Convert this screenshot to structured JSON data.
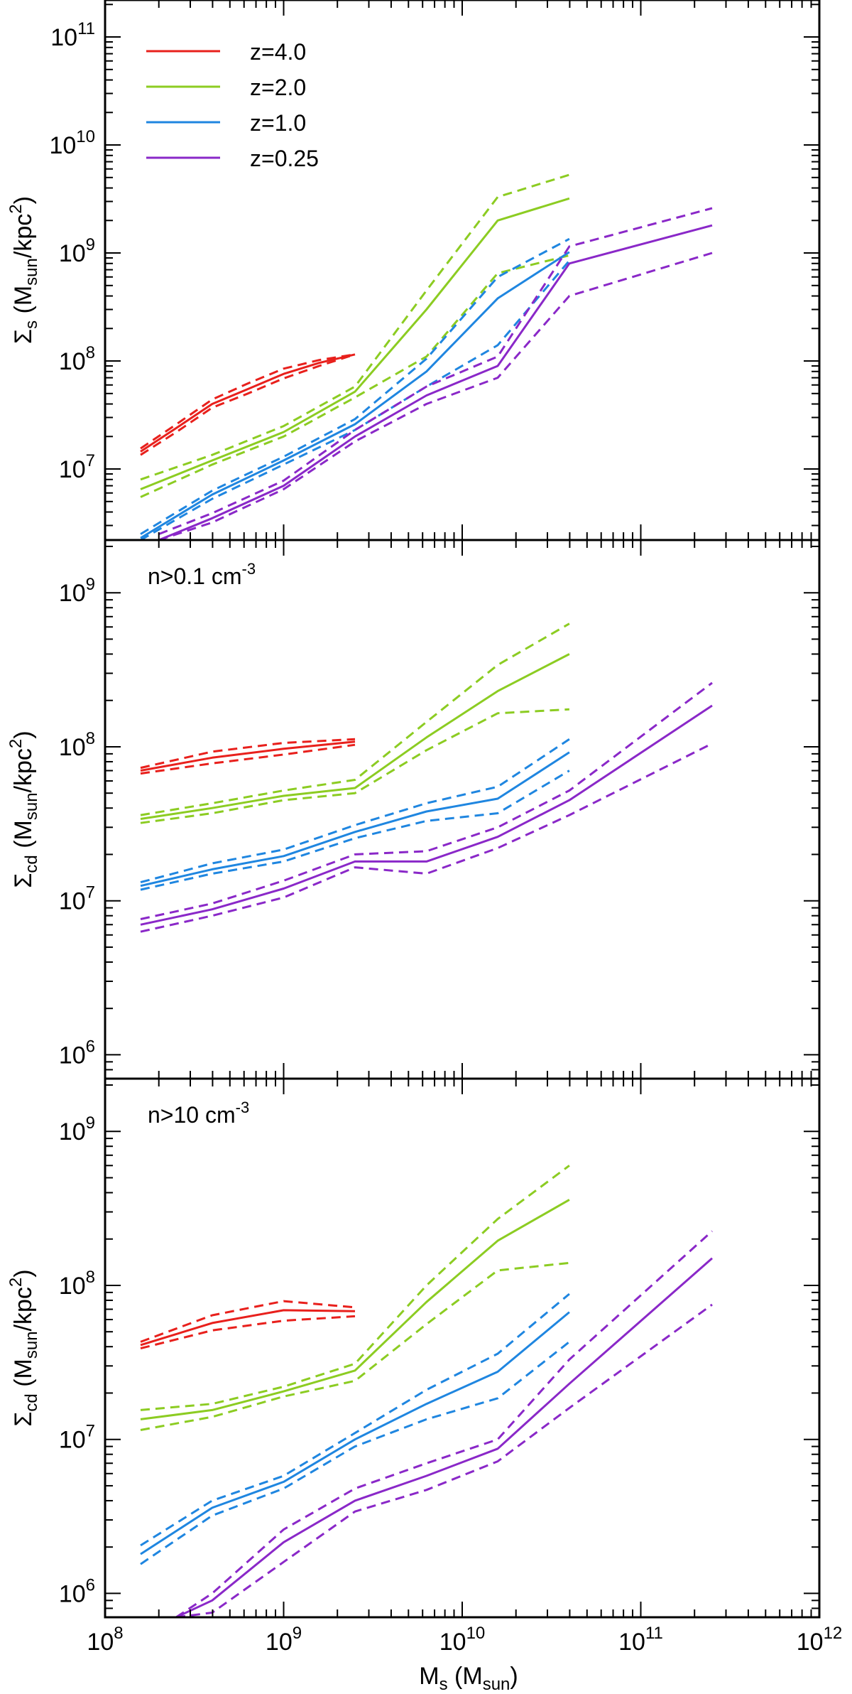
{
  "figure": {
    "xlabel_main": "M",
    "xlabel_sub": "s",
    "xlabel_rest": " (M",
    "xlabel_sub2": "sun",
    "xlabel_close": ")"
  },
  "legend": [
    {
      "label": "z=4.0",
      "color": "#e8201c"
    },
    {
      "label": "z=2.0",
      "color": "#8ccc22"
    },
    {
      "label": "z=1.0",
      "color": "#1f86e0"
    },
    {
      "label": "z=0.25",
      "color": "#8a28c8"
    }
  ],
  "chart_data": [
    {
      "type": "line",
      "xscale": "log",
      "yscale": "log",
      "xlim": [
        100000000.0,
        1000000000000.0
      ],
      "ylim": [
        2200000.0,
        220000000000.0
      ],
      "x_ticks": [
        100000000.0,
        1000000000.0,
        10000000000.0,
        100000000000.0,
        1000000000000.0
      ],
      "y_ticks": [
        10000000.0,
        100000000.0,
        1000000000.0,
        10000000000.0,
        100000000000.0
      ],
      "ylabel": {
        "sym": "Σ",
        "sub": "s",
        "mid": " (M",
        "sub2": "sun",
        "tail": "/kpc",
        "sup": "2",
        "close": ")"
      },
      "annotation": null,
      "series": [
        {
          "z": "z=4.0",
          "x": [
            158000000.0,
            251000000.0,
            398000000.0,
            631000000.0,
            1000000000.0,
            1580000000.0,
            2510000000.0
          ],
          "y": [
            14500000.0,
            24000000.0,
            40000000.0,
            55000000.0,
            76000000.0,
            96000000.0,
            115000000.0
          ],
          "y_hi": [
            15500000.0,
            26000000.0,
            44000000.0,
            62000000.0,
            85000000.0,
            102000000.0,
            115000000.0
          ],
          "y_lo": [
            13500000.0,
            22000000.0,
            37000000.0,
            50000000.0,
            69000000.0,
            90000000.0,
            115000000.0
          ]
        },
        {
          "z": "z=2.0",
          "x": [
            158000000.0,
            398000000.0,
            1000000000.0,
            2510000000.0,
            6310000000.0,
            15800000000.0,
            39800000000.0
          ],
          "y": [
            6500000.0,
            12000000.0,
            22000000.0,
            52000000.0,
            300000000.0,
            2000000000.0,
            3200000000.0
          ],
          "y_hi": [
            8000000.0,
            13500000.0,
            25000000.0,
            58000000.0,
            450000000.0,
            3300000000.0,
            5300000000.0
          ],
          "y_lo": [
            5500000.0,
            11000000.0,
            20000000.0,
            46000000.0,
            110000000.0,
            650000000.0,
            950000000.0
          ]
        },
        {
          "z": "z=1.0",
          "x": [
            158000000.0,
            398000000.0,
            1000000000.0,
            2510000000.0,
            6310000000.0,
            15800000000.0,
            39800000000.0
          ],
          "y": [
            2300000.0,
            5800000.0,
            12000000.0,
            26000000.0,
            80000000.0,
            380000000.0,
            1020000000.0
          ],
          "y_hi": [
            2500000.0,
            6300000.0,
            13000000.0,
            29000000.0,
            105000000.0,
            600000000.0,
            1350000000.0
          ],
          "y_lo": [
            2200000.0,
            5300000.0,
            11000000.0,
            23000000.0,
            58000000.0,
            140000000.0,
            850000000.0
          ]
        },
        {
          "z": "z=0.25",
          "x": [
            200000000.0,
            398000000.0,
            1000000000.0,
            2510000000.0,
            6310000000.0,
            15800000000.0,
            39800000000.0,
            251000000000.0
          ],
          "y": [
            2200000.0,
            3500000.0,
            7000000.0,
            20000000.0,
            48000000.0,
            90000000.0,
            800000000.0,
            1800000000.0
          ],
          "y_hi": [
            2500000.0,
            3900000.0,
            7800000.0,
            23000000.0,
            58000000.0,
            110000000.0,
            1150000000.0,
            2600000000.0
          ],
          "y_lo": [
            2200000.0,
            3200000.0,
            6500000.0,
            18000000.0,
            40000000.0,
            70000000.0,
            400000000.0,
            1000000000.0
          ]
        }
      ]
    },
    {
      "type": "line",
      "xscale": "log",
      "yscale": "log",
      "xlim": [
        100000000.0,
        1000000000000.0
      ],
      "ylim": [
        700000.0,
        2200000000.0
      ],
      "x_ticks": [
        100000000.0,
        1000000000.0,
        10000000000.0,
        100000000000.0,
        1000000000000.0
      ],
      "y_ticks": [
        1000000.0,
        10000000.0,
        100000000.0,
        1000000000.0
      ],
      "ylabel": {
        "sym": "Σ",
        "sub": "cd",
        "mid": " (M",
        "sub2": "sun",
        "tail": "/kpc",
        "sup": "2",
        "close": ")"
      },
      "annotation": {
        "base": "n>0.1 cm",
        "sup": "-3"
      },
      "series": [
        {
          "z": "z=4.0",
          "x": [
            158000000.0,
            398000000.0,
            1000000000.0,
            2510000000.0
          ],
          "y": [
            70000000.0,
            85000000.0,
            97000000.0,
            108000000.0
          ],
          "y_hi": [
            73000000.0,
            93000000.0,
            106000000.0,
            112000000.0
          ],
          "y_lo": [
            67000000.0,
            78000000.0,
            89000000.0,
            103000000.0
          ]
        },
        {
          "z": "z=2.0",
          "x": [
            158000000.0,
            398000000.0,
            1000000000.0,
            2510000000.0,
            6310000000.0,
            15800000000.0,
            39800000000.0
          ],
          "y": [
            34000000.0,
            40000000.0,
            48000000.0,
            54000000.0,
            115000000.0,
            230000000.0,
            400000000.0
          ],
          "y_hi": [
            36000000.0,
            43000000.0,
            52000000.0,
            61000000.0,
            145000000.0,
            340000000.0,
            630000000.0
          ],
          "y_lo": [
            32000000.0,
            37000000.0,
            45000000.0,
            50000000.0,
            95000000.0,
            165000000.0,
            175000000.0
          ]
        },
        {
          "z": "z=1.0",
          "x": [
            158000000.0,
            398000000.0,
            1000000000.0,
            2510000000.0,
            6310000000.0,
            15800000000.0,
            39800000000.0
          ],
          "y": [
            12500000.0,
            16000000.0,
            19500000.0,
            28000000.0,
            38000000.0,
            46000000.0,
            92000000.0
          ],
          "y_hi": [
            13200000.0,
            17500000.0,
            21500000.0,
            31000000.0,
            43000000.0,
            55000000.0,
            112000000.0
          ],
          "y_lo": [
            11800000.0,
            15000000.0,
            18000000.0,
            25500000.0,
            33000000.0,
            37000000.0,
            70000000.0
          ]
        },
        {
          "z": "z=0.25",
          "x": [
            158000000.0,
            398000000.0,
            1000000000.0,
            2510000000.0,
            6310000000.0,
            15800000000.0,
            39800000000.0,
            251000000000.0
          ],
          "y": [
            7000000.0,
            8800000.0,
            12000000.0,
            18000000.0,
            18000000.0,
            26000000.0,
            45000000.0,
            185000000.0
          ],
          "y_hi": [
            7600000.0,
            9600000.0,
            13500000.0,
            20000000.0,
            21000000.0,
            30000000.0,
            52000000.0,
            260000000.0
          ],
          "y_lo": [
            6300000.0,
            8000000.0,
            10500000.0,
            16500000.0,
            15000000.0,
            22000000.0,
            36000000.0,
            105000000.0
          ]
        }
      ]
    },
    {
      "type": "line",
      "xscale": "log",
      "yscale": "log",
      "xlim": [
        100000000.0,
        1000000000000.0
      ],
      "ylim": [
        700000.0,
        2200000000.0
      ],
      "x_ticks": [
        100000000.0,
        1000000000.0,
        10000000000.0,
        100000000000.0,
        1000000000000.0
      ],
      "y_ticks": [
        1000000.0,
        10000000.0,
        100000000.0,
        1000000000.0
      ],
      "ylabel": {
        "sym": "Σ",
        "sub": "cd",
        "mid": " (M",
        "sub2": "sun",
        "tail": "/kpc",
        "sup": "2",
        "close": ")"
      },
      "annotation": {
        "base": "n>10 cm",
        "sup": "-3"
      },
      "series": [
        {
          "z": "z=4.0",
          "x": [
            158000000.0,
            398000000.0,
            1000000000.0,
            2510000000.0
          ],
          "y": [
            41000000.0,
            57000000.0,
            69000000.0,
            68000000.0
          ],
          "y_hi": [
            43000000.0,
            64000000.0,
            79000000.0,
            72000000.0
          ],
          "y_lo": [
            39000000.0,
            51000000.0,
            59000000.0,
            63000000.0
          ]
        },
        {
          "z": "z=2.0",
          "x": [
            158000000.0,
            398000000.0,
            1000000000.0,
            2510000000.0,
            6310000000.0,
            15800000000.0,
            39800000000.0
          ],
          "y": [
            13500000.0,
            15500000.0,
            20500000.0,
            28000000.0,
            78000000.0,
            195000000.0,
            360000000.0
          ],
          "y_hi": [
            15500000.0,
            17000000.0,
            22000000.0,
            31000000.0,
            100000000.0,
            270000000.0,
            600000000.0
          ],
          "y_lo": [
            11500000.0,
            14000000.0,
            19000000.0,
            24000000.0,
            56000000.0,
            125000000.0,
            140000000.0
          ]
        },
        {
          "z": "z=1.0",
          "x": [
            158000000.0,
            398000000.0,
            1000000000.0,
            2510000000.0,
            6310000000.0,
            15800000000.0,
            39800000000.0
          ],
          "y": [
            1800000.0,
            3600000.0,
            5300000.0,
            10000000.0,
            17000000.0,
            27500000.0,
            67000000.0
          ],
          "y_hi": [
            2050000.0,
            4000000.0,
            5800000.0,
            11000000.0,
            21000000.0,
            36000000.0,
            88000000.0
          ],
          "y_lo": [
            1550000.0,
            3200000.0,
            4800000.0,
            9000000.0,
            13500000.0,
            18500000.0,
            43000000.0
          ]
        },
        {
          "z": "z=0.25",
          "x": [
            250000000.0,
            398000000.0,
            1000000000.0,
            2510000000.0,
            6310000000.0,
            15800000000.0,
            39800000000.0,
            251000000000.0
          ],
          "y": [
            700000.0,
            900000.0,
            2150000.0,
            4000000.0,
            5800000.0,
            8700000.0,
            23000000.0,
            150000000.0
          ],
          "y_hi": [
            700000.0,
            1000000.0,
            2600000.0,
            4800000.0,
            7000000.0,
            10000000.0,
            33000000.0,
            225000000.0
          ],
          "y_lo": [
            700000.0,
            750000.0,
            1600000.0,
            3400000.0,
            4700000.0,
            7200000.0,
            16000000.0,
            75000000.0
          ]
        }
      ]
    }
  ]
}
